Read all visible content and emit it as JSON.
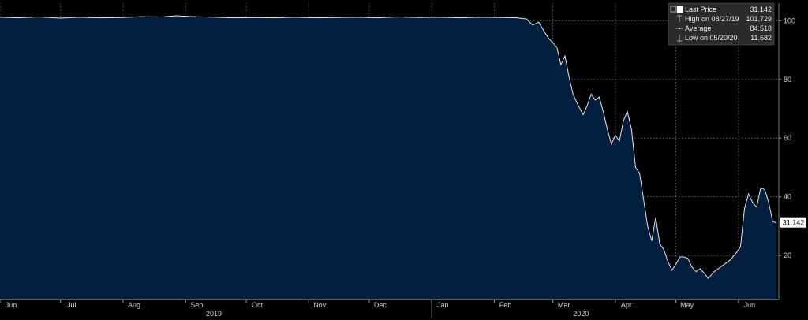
{
  "colors": {
    "background": "#000000",
    "area_fill": "#021f3f",
    "line": "#e6e6e6",
    "grid": "#6d6d6d",
    "label_box": "#ffffff",
    "legend_bg": "#2b2b2b"
  },
  "legend": {
    "items": [
      {
        "label": "Last Price",
        "value": "31.142",
        "icon": "square-swatch-icon"
      },
      {
        "label": "High on 08/27/19",
        "value": "101.729",
        "icon": "high-marker-icon"
      },
      {
        "label": "Average",
        "value": "84.518",
        "icon": "average-marker-icon"
      },
      {
        "label": "Low on 05/20/20",
        "value": "11.682",
        "icon": "low-marker-icon"
      }
    ]
  },
  "last_price_label": "31.142",
  "chart_data": {
    "type": "area",
    "title": "",
    "xlabel": "",
    "ylabel": "",
    "ylim": [
      5,
      106
    ],
    "y_ticks": [
      20,
      40,
      60,
      80,
      100
    ],
    "y_tick_labels": [
      "20",
      "40",
      "60",
      "80",
      "100"
    ],
    "grid": true,
    "legend_position": "top-right",
    "x_tick_labels": [
      "Jun",
      "Jul",
      "Aug",
      "Sep",
      "Oct",
      "Nov",
      "Dec",
      "Jan",
      "Feb",
      "Mar",
      "Apr",
      "May",
      "Jun"
    ],
    "x_tick_dates": [
      "2019-06-01",
      "2019-07-01",
      "2019-08-01",
      "2019-09-01",
      "2019-10-01",
      "2019-11-01",
      "2019-12-01",
      "2020-01-01",
      "2020-02-01",
      "2020-03-01",
      "2020-04-01",
      "2020-05-01",
      "2020-06-01"
    ],
    "year_labels": [
      "2019",
      "2020"
    ],
    "year_dates": [
      "2019-09-15",
      "2020-03-15"
    ],
    "year_divider_date": "2020-01-01",
    "xlim": [
      "2019-06-01",
      "2020-06-21"
    ],
    "series": [
      {
        "x": [
          "2019-06-01",
          "2019-06-10",
          "2019-06-20",
          "2019-07-01",
          "2019-07-10",
          "2019-07-20",
          "2019-08-01",
          "2019-08-10",
          "2019-08-20",
          "2019-08-27",
          "2019-09-05",
          "2019-09-15",
          "2019-09-25",
          "2019-10-05",
          "2019-10-15",
          "2019-10-25",
          "2019-11-05",
          "2019-11-15",
          "2019-11-25",
          "2019-12-05",
          "2019-12-15",
          "2019-12-25",
          "2020-01-05",
          "2020-01-15",
          "2020-01-25",
          "2020-02-05",
          "2020-02-12",
          "2020-02-17",
          "2020-02-20",
          "2020-02-23",
          "2020-02-26",
          "2020-02-28",
          "2020-03-01",
          "2020-03-03",
          "2020-03-05",
          "2020-03-07",
          "2020-03-09",
          "2020-03-11",
          "2020-03-13",
          "2020-03-16",
          "2020-03-18",
          "2020-03-20",
          "2020-03-22",
          "2020-03-24",
          "2020-03-26",
          "2020-03-28",
          "2020-03-30",
          "2020-04-01",
          "2020-04-03",
          "2020-04-05",
          "2020-04-07",
          "2020-04-09",
          "2020-04-11",
          "2020-04-13",
          "2020-04-15",
          "2020-04-17",
          "2020-04-19",
          "2020-04-21",
          "2020-04-23",
          "2020-04-25",
          "2020-04-27",
          "2020-04-29",
          "2020-05-01",
          "2020-05-03",
          "2020-05-05",
          "2020-05-07",
          "2020-05-09",
          "2020-05-11",
          "2020-05-13",
          "2020-05-15",
          "2020-05-17",
          "2020-05-20",
          "2020-05-22",
          "2020-05-25",
          "2020-05-28",
          "2020-05-31",
          "2020-06-02",
          "2020-06-04",
          "2020-06-06",
          "2020-06-08",
          "2020-06-10",
          "2020-06-12",
          "2020-06-14",
          "2020-06-16",
          "2020-06-18",
          "2020-06-20"
        ],
        "y": [
          101.2,
          101.0,
          101.3,
          100.9,
          101.2,
          101.0,
          101.1,
          101.4,
          101.3,
          101.7,
          101.4,
          101.2,
          101.0,
          101.1,
          101.0,
          101.2,
          101.0,
          101.1,
          101.2,
          101.0,
          101.3,
          101.1,
          101.2,
          101.0,
          101.2,
          101.1,
          101.0,
          100.6,
          98.5,
          99.5,
          96.0,
          94.0,
          92.5,
          91.0,
          85.0,
          88.0,
          81.0,
          75.0,
          72.0,
          68.0,
          71.0,
          75.0,
          73.0,
          74.0,
          69.0,
          63.0,
          58.0,
          61.0,
          59.0,
          66.0,
          69.0,
          63.0,
          50.0,
          48.0,
          39.0,
          30.0,
          25.0,
          33.0,
          24.0,
          22.0,
          18.0,
          15.0,
          17.0,
          19.5,
          19.5,
          19.0,
          16.0,
          14.5,
          15.5,
          14.0,
          12.2,
          14.5,
          15.5,
          17.0,
          18.5,
          21.0,
          23.0,
          36.0,
          41.0,
          38.0,
          36.5,
          43.0,
          42.5,
          38.0,
          31.5,
          31.142
        ]
      }
    ]
  }
}
